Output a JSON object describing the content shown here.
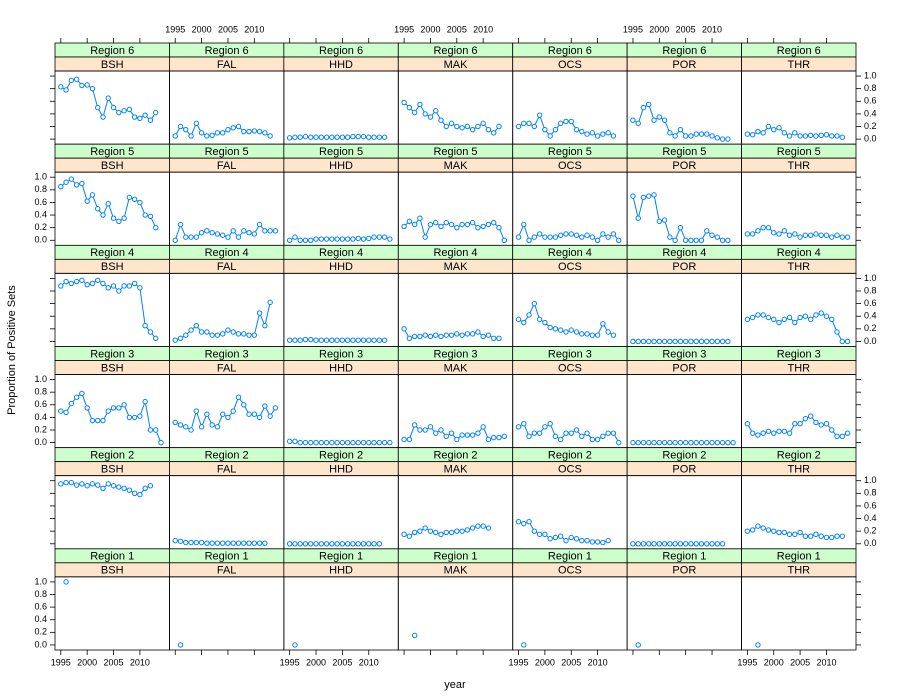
{
  "chart_data": {
    "type": "line",
    "color": "#0080ff",
    "x_label": "year",
    "y_label": "Proportion of Positive Sets",
    "xlim": [
      1993.9,
      2015.6
    ],
    "ylim": [
      -0.08,
      1.08
    ],
    "xticks": [
      1995,
      2000,
      2005,
      2010
    ],
    "yticks": [
      {
        "value": 0,
        "label": "0.0"
      },
      0.2,
      0.4,
      0.6,
      0.8,
      {
        "value": 1,
        "label": "1.0"
      }
    ],
    "x": [
      1995,
      1996,
      1997,
      1998,
      1999,
      2000,
      2001,
      2002,
      2003,
      2004,
      2005,
      2006,
      2007,
      2008,
      2009,
      2010,
      2011,
      2012,
      2013,
      2014
    ],
    "panels": [
      {
        "region": "Region 6",
        "species": "BSH",
        "values": [
          0.83,
          0.78,
          0.93,
          0.95,
          0.85,
          0.86,
          0.8,
          0.5,
          0.35,
          0.65,
          0.5,
          0.42,
          0.45,
          0.47,
          0.35,
          0.33,
          0.38,
          0.3,
          0.42,
          null
        ]
      },
      {
        "region": "Region 6",
        "species": "FAL",
        "values": [
          0.05,
          0.2,
          0.15,
          0.05,
          0.25,
          0.1,
          0.05,
          0.06,
          0.1,
          0.1,
          0.15,
          0.18,
          0.2,
          0.12,
          0.12,
          0.13,
          0.12,
          0.1,
          0.05,
          null
        ]
      },
      {
        "region": "Region 6",
        "species": "HHD",
        "values": [
          0.02,
          0.03,
          0.03,
          0.04,
          0.03,
          0.03,
          0.03,
          0.03,
          0.03,
          0.03,
          0.03,
          0.03,
          0.04,
          0.04,
          0.04,
          0.03,
          0.03,
          0.03,
          0.03,
          null
        ]
      },
      {
        "region": "Region 6",
        "species": "MAK",
        "values": [
          0.58,
          0.5,
          0.42,
          0.55,
          0.4,
          0.35,
          0.45,
          0.3,
          0.2,
          0.25,
          0.2,
          0.18,
          0.2,
          0.15,
          0.2,
          0.25,
          0.15,
          0.1,
          0.2,
          null
        ]
      },
      {
        "region": "Region 6",
        "species": "OCS",
        "values": [
          0.2,
          0.25,
          0.25,
          0.2,
          0.38,
          0.15,
          0.05,
          0.15,
          0.25,
          0.28,
          0.28,
          0.15,
          0.12,
          0.08,
          0.1,
          0.05,
          0.08,
          0.1,
          0.05,
          null
        ]
      },
      {
        "region": "Region 6",
        "species": "POR",
        "values": [
          0.3,
          0.25,
          0.5,
          0.55,
          0.3,
          0.35,
          0.3,
          0.1,
          0.05,
          0.15,
          0.05,
          0.05,
          0.08,
          0.08,
          0.08,
          0.05,
          0.02,
          0,
          0,
          null
        ]
      },
      {
        "region": "Region 6",
        "species": "THR",
        "values": [
          0.08,
          0.07,
          0.12,
          0.1,
          0.2,
          0.15,
          0.18,
          0.1,
          0.05,
          0.1,
          0.05,
          0.05,
          0.06,
          0.05,
          0.06,
          0.07,
          0.05,
          0.05,
          0.03,
          null
        ]
      },
      {
        "region": "Region 5",
        "species": "BSH",
        "values": [
          0.85,
          0.92,
          0.97,
          0.88,
          0.9,
          0.62,
          0.72,
          0.5,
          0.4,
          0.58,
          0.35,
          0.3,
          0.35,
          0.68,
          0.65,
          0.6,
          0.4,
          0.38,
          0.2,
          null
        ]
      },
      {
        "region": "Region 5",
        "species": "FAL",
        "values": [
          0,
          0.25,
          0.05,
          0.05,
          0.05,
          0.12,
          0.15,
          0.12,
          0.1,
          0.08,
          0.05,
          0.15,
          0.05,
          0.15,
          0.12,
          0.1,
          0.25,
          0.15,
          0.15,
          0.15
        ]
      },
      {
        "region": "Region 5",
        "species": "HHD",
        "values": [
          0,
          0.05,
          0,
          0,
          0,
          0.02,
          0.02,
          0.02,
          0.02,
          0.02,
          0.02,
          0.02,
          0.02,
          0.03,
          0.02,
          0.03,
          0.05,
          0.05,
          0.05,
          0.02
        ]
      },
      {
        "region": "Region 5",
        "species": "MAK",
        "values": [
          0.22,
          0.3,
          0.25,
          0.35,
          0.05,
          0.25,
          0.28,
          0.22,
          0.28,
          0.25,
          0.2,
          0.25,
          0.25,
          0.28,
          0.2,
          0.22,
          0.25,
          0.28,
          0.2,
          0
        ]
      },
      {
        "region": "Region 5",
        "species": "OCS",
        "values": [
          0.05,
          0.25,
          0,
          0.05,
          0.1,
          0.05,
          0.05,
          0.05,
          0.08,
          0.1,
          0.1,
          0.08,
          0.05,
          0.08,
          0.05,
          0,
          0.1,
          0.05,
          0.1,
          0
        ]
      },
      {
        "region": "Region 5",
        "species": "POR",
        "values": [
          0.7,
          0.35,
          0.68,
          0.7,
          0.72,
          0.3,
          0.32,
          0.05,
          0,
          0.2,
          0,
          0,
          0,
          0,
          0.15,
          0.08,
          0.05,
          0,
          0,
          null
        ]
      },
      {
        "region": "Region 5",
        "species": "THR",
        "values": [
          0.1,
          0.1,
          0.15,
          0.2,
          0.2,
          0.12,
          0.1,
          0.15,
          0.08,
          0.1,
          0.05,
          0.08,
          0.08,
          0.1,
          0.08,
          0.08,
          0.05,
          0.08,
          0.05,
          0.05
        ]
      },
      {
        "region": "Region 4",
        "species": "BSH",
        "values": [
          0.88,
          0.95,
          0.92,
          0.95,
          0.97,
          0.9,
          0.92,
          0.97,
          0.92,
          0.85,
          0.88,
          0.8,
          0.88,
          0.88,
          0.92,
          0.85,
          0.25,
          0.15,
          0.05,
          null
        ]
      },
      {
        "region": "Region 4",
        "species": "FAL",
        "values": [
          0.02,
          0.05,
          0.1,
          0.18,
          0.25,
          0.15,
          0.15,
          0.1,
          0.1,
          0.12,
          0.18,
          0.15,
          0.12,
          0.12,
          0.1,
          0.1,
          0.45,
          0.25,
          0.62,
          null
        ]
      },
      {
        "region": "Region 4",
        "species": "HHD",
        "values": [
          0.02,
          0.02,
          0.02,
          0.03,
          0.03,
          0.02,
          0.02,
          0.02,
          0.02,
          0.02,
          0.02,
          0.02,
          0.02,
          0.02,
          0.02,
          0.02,
          0.02,
          0.02,
          0.02,
          null
        ]
      },
      {
        "region": "Region 4",
        "species": "MAK",
        "values": [
          0.2,
          0.05,
          0.08,
          0.08,
          0.1,
          0.08,
          0.1,
          0.08,
          0.1,
          0.1,
          0.12,
          0.1,
          0.12,
          0.12,
          0.15,
          0.08,
          0.1,
          0.05,
          0.05,
          null
        ]
      },
      {
        "region": "Region 4",
        "species": "OCS",
        "values": [
          0.35,
          0.3,
          0.42,
          0.6,
          0.35,
          0.3,
          0.22,
          0.2,
          0.18,
          0.15,
          0.18,
          0.15,
          0.12,
          0.12,
          0.1,
          0.1,
          0.28,
          0.15,
          0.1,
          null
        ]
      },
      {
        "region": "Region 4",
        "species": "POR",
        "values": [
          0,
          0,
          0,
          0,
          0,
          0,
          0,
          0,
          0,
          0,
          0,
          0,
          0,
          0,
          0,
          0,
          0,
          0,
          0,
          null
        ]
      },
      {
        "region": "Region 4",
        "species": "THR",
        "values": [
          0.35,
          0.38,
          0.42,
          0.42,
          0.38,
          0.35,
          0.3,
          0.35,
          0.38,
          0.3,
          0.38,
          0.4,
          0.35,
          0.42,
          0.45,
          0.4,
          0.35,
          0.15,
          0,
          0
        ]
      },
      {
        "region": "Region 3",
        "species": "BSH",
        "values": [
          0.5,
          0.48,
          0.62,
          0.72,
          0.78,
          0.55,
          0.35,
          0.35,
          0.35,
          0.5,
          0.55,
          0.55,
          0.6,
          0.4,
          0.4,
          0.42,
          0.65,
          0.2,
          0.2,
          0
        ]
      },
      {
        "region": "Region 3",
        "species": "FAL",
        "values": [
          0.32,
          0.28,
          0.25,
          0.2,
          0.5,
          0.25,
          0.45,
          0.28,
          0.25,
          0.45,
          0.4,
          0.5,
          0.72,
          0.6,
          0.45,
          0.45,
          0.4,
          0.58,
          0.42,
          0.55
        ]
      },
      {
        "region": "Region 3",
        "species": "HHD",
        "values": [
          0.02,
          0.02,
          0,
          0,
          0,
          0,
          0,
          0,
          0,
          0,
          0,
          0,
          0,
          0,
          0,
          0,
          0,
          0,
          0,
          0
        ]
      },
      {
        "region": "Region 3",
        "species": "MAK",
        "values": [
          0.05,
          0.05,
          0.28,
          0.2,
          0.2,
          0.25,
          0.15,
          0.2,
          0.1,
          0.15,
          0.05,
          0.12,
          0.12,
          0.12,
          0.15,
          0.25,
          0.05,
          0.08,
          0.08,
          0.1
        ]
      },
      {
        "region": "Region 3",
        "species": "OCS",
        "values": [
          0.25,
          0.3,
          0.1,
          0.15,
          0.15,
          0.25,
          0.3,
          0.1,
          0.05,
          0.15,
          0.15,
          0.2,
          0.1,
          0.15,
          0.05,
          0.05,
          0.1,
          0.15,
          0.15,
          0
        ]
      },
      {
        "region": "Region 3",
        "species": "POR",
        "values": [
          0,
          0,
          0,
          0,
          0,
          0,
          0,
          0,
          0,
          0,
          0,
          0,
          0,
          0,
          0,
          0,
          0,
          0,
          0,
          0
        ]
      },
      {
        "region": "Region 3",
        "species": "THR",
        "values": [
          0.3,
          0.15,
          0.12,
          0.15,
          0.18,
          0.15,
          0.18,
          0.18,
          0.15,
          0.3,
          0.3,
          0.38,
          0.42,
          0.32,
          0.28,
          0.3,
          0.2,
          0.1,
          0.1,
          0.15
        ]
      },
      {
        "region": "Region 2",
        "species": "BSH",
        "values": [
          0.95,
          0.97,
          0.97,
          0.93,
          0.95,
          0.92,
          0.95,
          0.93,
          0.88,
          0.95,
          0.92,
          0.9,
          0.88,
          0.85,
          0.8,
          0.78,
          0.88,
          0.92,
          null,
          null
        ]
      },
      {
        "region": "Region 2",
        "species": "FAL",
        "values": [
          0.05,
          0.04,
          0.02,
          0.02,
          0.02,
          0.02,
          0.01,
          0.01,
          0.01,
          0.01,
          0.01,
          0.01,
          0.01,
          0.01,
          0.01,
          0.01,
          0.01,
          0.01,
          null,
          null
        ]
      },
      {
        "region": "Region 2",
        "species": "HHD",
        "values": [
          0,
          0,
          0,
          0,
          0,
          0,
          0,
          0,
          0,
          0,
          0,
          0,
          0,
          0,
          0,
          0,
          0,
          0,
          null,
          null
        ]
      },
      {
        "region": "Region 2",
        "species": "MAK",
        "values": [
          0.15,
          0.12,
          0.18,
          0.2,
          0.25,
          0.2,
          0.18,
          0.15,
          0.18,
          0.18,
          0.2,
          0.2,
          0.22,
          0.25,
          0.28,
          0.28,
          0.25,
          null,
          null,
          null
        ]
      },
      {
        "region": "Region 2",
        "species": "OCS",
        "values": [
          0.35,
          0.32,
          0.35,
          0.2,
          0.15,
          0.15,
          0.08,
          0.1,
          0.12,
          0.05,
          0.1,
          0.08,
          0.05,
          0.05,
          0.03,
          0.03,
          0.02,
          0.05,
          null,
          null
        ]
      },
      {
        "region": "Region 2",
        "species": "POR",
        "values": [
          0,
          0,
          0,
          0,
          0,
          0,
          0,
          0,
          0,
          0,
          0,
          0,
          0,
          0,
          0,
          0,
          0,
          0,
          null,
          null
        ]
      },
      {
        "region": "Region 2",
        "species": "THR",
        "values": [
          0.2,
          0.22,
          0.28,
          0.25,
          0.22,
          0.2,
          0.18,
          0.18,
          0.15,
          0.15,
          0.18,
          0.12,
          0.12,
          0.15,
          0.12,
          0.1,
          0.1,
          0.12,
          0.12,
          null
        ]
      },
      {
        "region": "Region 1",
        "species": "BSH",
        "values": [
          null,
          1,
          null,
          null,
          null,
          null,
          null,
          null,
          null,
          null,
          null,
          null,
          null,
          null,
          null,
          null,
          null,
          null,
          null,
          null
        ]
      },
      {
        "region": "Region 1",
        "species": "FAL",
        "values": [
          null,
          0,
          null,
          null,
          null,
          null,
          null,
          null,
          null,
          null,
          null,
          null,
          null,
          null,
          null,
          null,
          null,
          null,
          null,
          null
        ]
      },
      {
        "region": "Region 1",
        "species": "HHD",
        "values": [
          null,
          0,
          null,
          null,
          null,
          null,
          null,
          null,
          null,
          null,
          null,
          null,
          null,
          null,
          null,
          null,
          null,
          null,
          null,
          null
        ]
      },
      {
        "region": "Region 1",
        "species": "MAK",
        "values": [
          null,
          null,
          0.15,
          null,
          null,
          null,
          null,
          null,
          null,
          null,
          null,
          null,
          null,
          null,
          null,
          null,
          null,
          null,
          null,
          null
        ]
      },
      {
        "region": "Region 1",
        "species": "OCS",
        "values": [
          null,
          0,
          null,
          null,
          null,
          null,
          null,
          null,
          null,
          null,
          null,
          null,
          null,
          null,
          null,
          null,
          null,
          null,
          null,
          null
        ]
      },
      {
        "region": "Region 1",
        "species": "POR",
        "values": [
          null,
          0,
          null,
          null,
          null,
          null,
          null,
          null,
          null,
          null,
          null,
          null,
          null,
          null,
          null,
          null,
          null,
          null,
          null,
          null
        ]
      },
      {
        "region": "Region 1",
        "species": "THR",
        "values": [
          null,
          null,
          0,
          null,
          null,
          null,
          null,
          null,
          null,
          null,
          null,
          null,
          null,
          null,
          null,
          null,
          null,
          null,
          null,
          null
        ]
      }
    ]
  }
}
